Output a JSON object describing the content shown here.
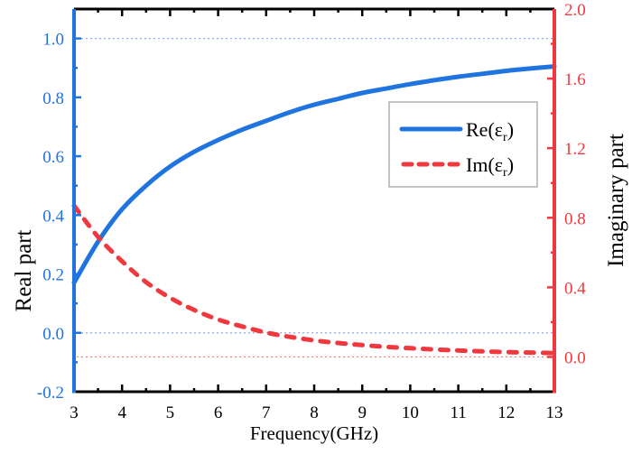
{
  "chart_data": {
    "type": "line",
    "title": "",
    "xlabel": "Frequency(GHz)",
    "ylabel_left": "Real part",
    "ylabel_right": "Imaginary part",
    "xlim": [
      3,
      13
    ],
    "ylim_left": [
      -0.2,
      1.1
    ],
    "ylim_right": [
      -0.2,
      2.0
    ],
    "x_ticks": [
      "3",
      "4",
      "5",
      "6",
      "7",
      "8",
      "9",
      "10",
      "11",
      "12",
      "13"
    ],
    "y_ticks_left": [
      "-0.2",
      "0.0",
      "0.2",
      "0.4",
      "0.6",
      "0.8",
      "1.0"
    ],
    "y_ticks_right": [
      "0.0",
      "0.4",
      "0.8",
      "1.2",
      "1.6",
      "2.0"
    ],
    "x": [
      3,
      3.5,
      4,
      4.5,
      5,
      5.5,
      6,
      6.5,
      7,
      7.5,
      8,
      8.5,
      9,
      9.5,
      10,
      10.5,
      11,
      11.5,
      12,
      12.5,
      13
    ],
    "series": [
      {
        "name": "Re(εr)",
        "legend_main": "Re(ε",
        "legend_sub": "r",
        "legend_close": ")",
        "axis": "left",
        "style": "solid",
        "color": "#1f74e0",
        "values": [
          0.17,
          0.31,
          0.42,
          0.5,
          0.565,
          0.615,
          0.655,
          0.69,
          0.72,
          0.75,
          0.775,
          0.795,
          0.815,
          0.83,
          0.845,
          0.858,
          0.87,
          0.88,
          0.89,
          0.898,
          0.905
        ]
      },
      {
        "name": "Im(εr)",
        "legend_main": "Im(ε",
        "legend_sub": "r",
        "legend_close": ")",
        "axis": "right",
        "style": "dashed",
        "color": "#f0393e",
        "values": [
          0.87,
          0.69,
          0.55,
          0.43,
          0.34,
          0.27,
          0.215,
          0.175,
          0.14,
          0.115,
          0.095,
          0.08,
          0.068,
          0.058,
          0.05,
          0.043,
          0.037,
          0.032,
          0.028,
          0.025,
          0.022
        ]
      }
    ],
    "reference_lines": [
      {
        "axis": "left",
        "value": 1.0,
        "color": "#8fa8f0"
      },
      {
        "axis": "left",
        "value": 0.0,
        "color": "#8fa8f0"
      },
      {
        "axis": "right",
        "value": 0.0,
        "color": "#f07a7a"
      }
    ],
    "legend_position": "right-upper",
    "grid": false,
    "colors": {
      "left_axis": "#1f74e0",
      "right_axis": "#f0393e",
      "frame": "#000000"
    }
  }
}
